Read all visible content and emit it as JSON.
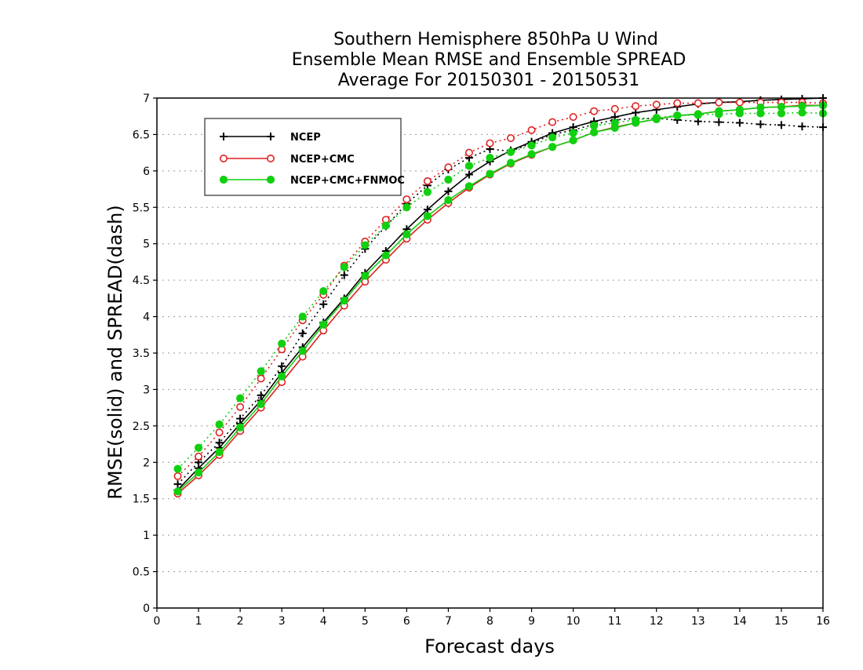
{
  "chart_data": {
    "type": "line",
    "title_lines": [
      "Southern Hemisphere 850hPa U Wind",
      "Ensemble Mean RMSE and Ensemble SPREAD",
      "Average For 20150301 - 20150531"
    ],
    "xlabel": "Forecast days",
    "ylabel": "RMSE(solid) and SPREAD(dash)",
    "xlim": [
      0,
      16
    ],
    "ylim": [
      0,
      7
    ],
    "x_ticks": [
      "0",
      "1",
      "2",
      "3",
      "4",
      "5",
      "6",
      "7",
      "8",
      "9",
      "10",
      "11",
      "12",
      "13",
      "14",
      "15",
      "16"
    ],
    "y_ticks": [
      "0",
      "0.5",
      "1",
      "1.5",
      "2",
      "2.5",
      "3",
      "3.5",
      "4",
      "4.5",
      "5",
      "5.5",
      "6",
      "6.5",
      "7"
    ],
    "grid": "horizontal-dotted",
    "legend_position": "top-left",
    "x": [
      0.5,
      1,
      1.5,
      2,
      2.5,
      3,
      3.5,
      4,
      4.5,
      5,
      5.5,
      6,
      6.5,
      7,
      7.5,
      8,
      8.5,
      9,
      9.5,
      10,
      10.5,
      11,
      11.5,
      12,
      12.5,
      13,
      13.5,
      14,
      14.5,
      15,
      15.5,
      16
    ],
    "series": [
      {
        "name": "NCEP",
        "color": "#000000",
        "marker": "plus",
        "rmse": [
          1.62,
          1.92,
          2.2,
          2.53,
          2.85,
          3.23,
          3.58,
          3.92,
          4.25,
          4.6,
          4.9,
          5.2,
          5.47,
          5.72,
          5.95,
          6.13,
          6.28,
          6.4,
          6.52,
          6.6,
          6.68,
          6.74,
          6.8,
          6.84,
          6.88,
          6.92,
          6.94,
          6.95,
          6.97,
          6.98,
          6.99,
          7.0
        ],
        "spread": [
          1.7,
          2.0,
          2.27,
          2.6,
          2.92,
          3.32,
          3.77,
          4.17,
          4.57,
          4.93,
          5.24,
          5.55,
          5.8,
          6.02,
          6.18,
          6.3,
          6.27,
          6.38,
          6.5,
          6.56,
          6.64,
          6.7,
          6.72,
          6.72,
          6.7,
          6.68,
          6.67,
          6.66,
          6.64,
          6.63,
          6.61,
          6.6
        ]
      },
      {
        "name": "NCEP+CMC",
        "color": "#e02020",
        "marker": "circle-open",
        "rmse": [
          1.57,
          1.82,
          2.1,
          2.43,
          2.75,
          3.1,
          3.45,
          3.81,
          4.15,
          4.48,
          4.78,
          5.07,
          5.33,
          5.56,
          5.77,
          5.95,
          6.1,
          6.22,
          6.33,
          6.42,
          6.53,
          6.6,
          6.66,
          6.71,
          6.76,
          6.78,
          6.82,
          6.84,
          6.87,
          6.88,
          6.9,
          6.9
        ],
        "spread": [
          1.81,
          2.08,
          2.41,
          2.76,
          3.15,
          3.55,
          3.95,
          4.3,
          4.7,
          5.03,
          5.33,
          5.61,
          5.86,
          6.05,
          6.25,
          6.38,
          6.45,
          6.56,
          6.67,
          6.74,
          6.82,
          6.85,
          6.89,
          6.91,
          6.93,
          6.93,
          6.94,
          6.94,
          6.94,
          6.94,
          6.94,
          6.93
        ]
      },
      {
        "name": "NCEP+CMC+FNMOC",
        "color": "#10d010",
        "marker": "circle-filled",
        "rmse": [
          1.6,
          1.86,
          2.14,
          2.48,
          2.8,
          3.18,
          3.53,
          3.89,
          4.22,
          4.56,
          4.84,
          5.13,
          5.38,
          5.6,
          5.79,
          5.96,
          6.11,
          6.23,
          6.33,
          6.42,
          6.53,
          6.59,
          6.66,
          6.71,
          6.76,
          6.78,
          6.82,
          6.84,
          6.87,
          6.88,
          6.89,
          6.9
        ],
        "spread": [
          1.91,
          2.2,
          2.52,
          2.88,
          3.25,
          3.63,
          4.0,
          4.35,
          4.68,
          4.98,
          5.25,
          5.5,
          5.71,
          5.88,
          6.07,
          6.18,
          6.26,
          6.35,
          6.46,
          6.52,
          6.62,
          6.66,
          6.7,
          6.73,
          6.76,
          6.77,
          6.78,
          6.79,
          6.79,
          6.79,
          6.8,
          6.79
        ]
      }
    ]
  }
}
